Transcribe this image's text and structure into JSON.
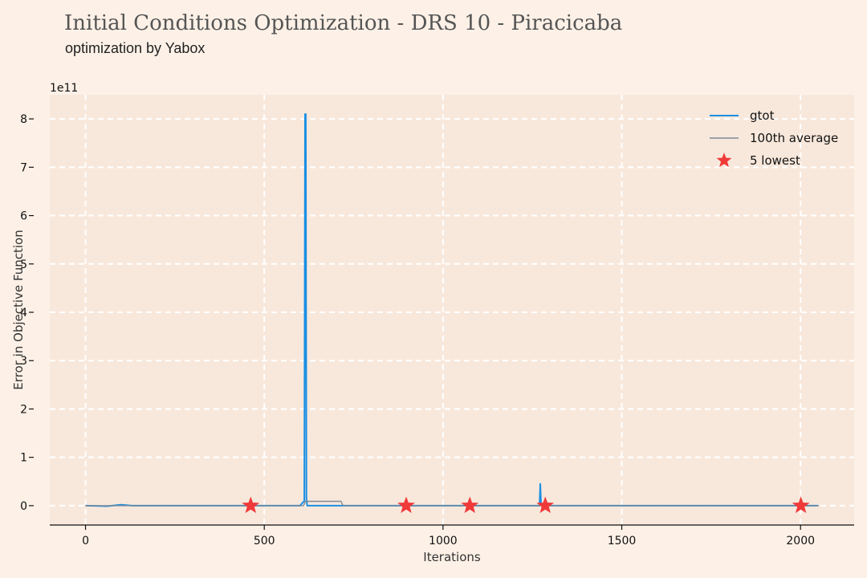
{
  "header": {
    "title": "Initial Conditions Optimization - DRS 10 - Piracicaba",
    "subtitle": "optimization by Yabox"
  },
  "colors": {
    "page_bg": "#fdf1e7",
    "plot_bg": "#f8e8dc",
    "grid": "#ffffff",
    "gtot": "#1a8fe3",
    "average": "#7f8a95",
    "lowest": "#f03a3a"
  },
  "chart_data": {
    "type": "line",
    "title": "",
    "xlabel": "Iterations",
    "ylabel": "Error in Objective Function",
    "y_scale_label": "1e11",
    "xlim": [
      -100,
      2150
    ],
    "ylim": [
      -0.4,
      8.5
    ],
    "x_ticks": [
      0,
      500,
      1000,
      1500,
      2000
    ],
    "x_tick_labels": [
      "0",
      "500",
      "1000",
      "1500",
      "2000"
    ],
    "y_ticks": [
      0,
      1,
      2,
      3,
      4,
      5,
      6,
      7,
      8
    ],
    "y_tick_labels": [
      "0",
      "1",
      "2",
      "3",
      "4",
      "5",
      "6",
      "7",
      "8"
    ],
    "grid": true,
    "legend_position": "top-right",
    "series": [
      {
        "name": "gtot",
        "style": "line",
        "x": [
          0,
          60,
          100,
          130,
          200,
          300,
          400,
          500,
          600,
          612,
          614,
          616,
          618,
          620,
          700,
          800,
          900,
          1000,
          1100,
          1200,
          1270,
          1272,
          1274,
          1276,
          1300,
          1400,
          1500,
          1600,
          1700,
          1800,
          1900,
          2000,
          2050
        ],
        "y": [
          0.0,
          -0.01,
          0.02,
          0.0,
          0.0,
          0.0,
          0.0,
          0.0,
          0.0,
          0.1,
          8.1,
          8.1,
          0.15,
          0.0,
          0.0,
          0.0,
          0.0,
          0.0,
          0.0,
          0.0,
          0.0,
          0.45,
          0.05,
          0.0,
          0.0,
          0.0,
          0.0,
          0.0,
          0.0,
          0.0,
          0.0,
          0.0,
          0.0
        ]
      },
      {
        "name": "100th average",
        "style": "line",
        "x": [
          0,
          100,
          200,
          300,
          400,
          500,
          610,
          615,
          715,
          720,
          800,
          900,
          1000,
          1100,
          1200,
          1300,
          1400,
          1500,
          1600,
          1700,
          1800,
          1900,
          2000,
          2050
        ],
        "y": [
          0.0,
          0.0,
          0.0,
          0.0,
          0.0,
          0.0,
          0.0,
          0.09,
          0.09,
          0.0,
          0.0,
          0.0,
          0.0,
          0.0,
          0.0,
          0.0,
          0.0,
          0.0,
          0.0,
          0.0,
          0.0,
          0.0,
          0.0,
          0.0
        ]
      },
      {
        "name": "5 lowest",
        "style": "marker",
        "x": [
          462,
          897,
          1075,
          1286,
          2001
        ],
        "y": [
          0.0,
          0.0,
          0.0,
          0.0,
          0.0
        ]
      }
    ]
  }
}
